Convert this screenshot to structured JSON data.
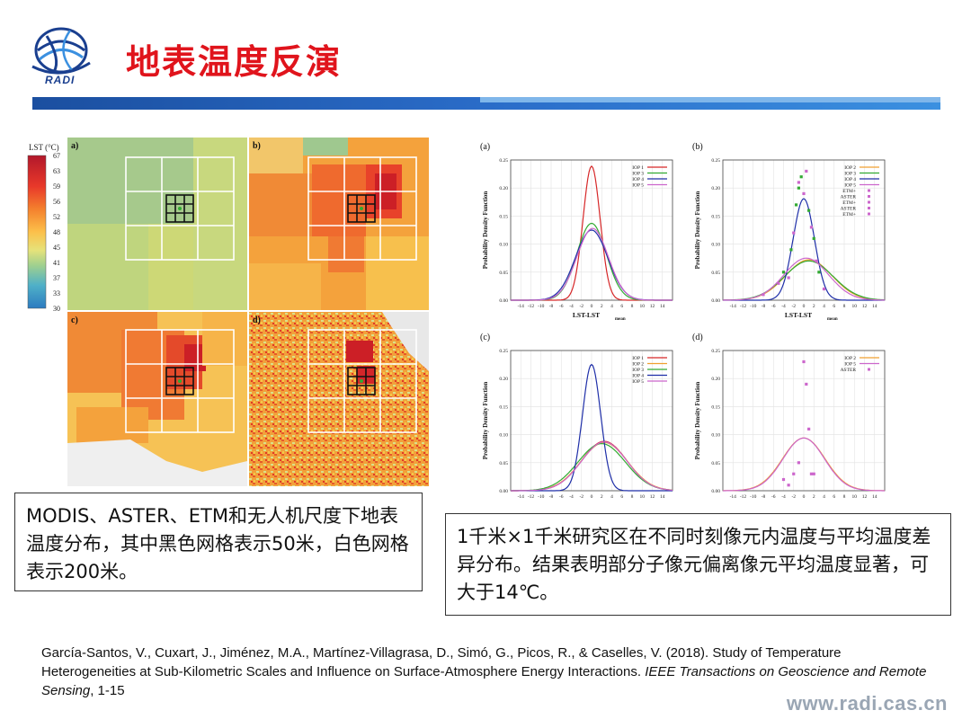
{
  "slide": {
    "logo_text": "RADI",
    "title": "地表温度反演",
    "url": "www.radi.cas.cn"
  },
  "maps": {
    "colorbar_label": "LST (°C)",
    "colorbar_ticks": [
      "67",
      "63",
      "59",
      "56",
      "52",
      "48",
      "45",
      "41",
      "37",
      "33",
      "30"
    ],
    "panels": [
      "a)",
      "b)",
      "c)",
      "d)"
    ]
  },
  "captions": {
    "left": "MODIS、ASTER、ETM和无人机尺度下地表温度分布，其中黑色网格表示50米，白色网格表示200米。",
    "right": "1千米×1千米研究区在不同时刻像元内温度与平均温度差异分布。结果表明部分子像元偏离像元平均温度显著，可大于14℃。"
  },
  "reference": {
    "text_before": "García-Santos, V., Cuxart, J., Jiménez, M.A., Martínez-Villagrasa, D., Simó, G., Picos, R., & Caselles, V. (2018). Study of Temperature Heterogeneities at Sub-Kilometric Scales and Influence on Surface-Atmosphere Energy Interactions. ",
    "journal": "IEEE Transactions on Geoscience and Remote Sensing",
    "text_after": ", 1-15"
  },
  "colors": {
    "title": "#e0141c",
    "bar": "#2a6cc8",
    "iop1": "#d62728",
    "iop2": "#f0a030",
    "iop3": "#33aa33",
    "iop4": "#1f2fa8",
    "iop5": "#cc66cc"
  },
  "chart_data": [
    {
      "type": "line",
      "panel": "(a)",
      "xlabel": "LST-LST",
      "xlabel_sub": "mean",
      "ylabel": "Probability Density Function",
      "xlim": [
        -16,
        16
      ],
      "ylim": [
        0,
        0.25
      ],
      "xticks": [
        -14,
        -12,
        -10,
        -8,
        -6,
        -4,
        -2,
        0,
        2,
        4,
        6,
        8,
        10,
        12,
        14
      ],
      "yticks": [
        0.0,
        0.05,
        0.1,
        0.15,
        0.2,
        0.25
      ],
      "series": [
        {
          "name": "IOP 1",
          "color": "#d62728",
          "mean": 0.0,
          "sd": 1.7,
          "peak": 0.239
        },
        {
          "name": "IOP 3",
          "color": "#33aa33",
          "mean": 0.0,
          "sd": 2.9,
          "peak": 0.137
        },
        {
          "name": "IOP 4",
          "color": "#1f2fa8",
          "mean": 0.0,
          "sd": 3.2,
          "peak": 0.125
        },
        {
          "name": "IOP 5",
          "color": "#cc66cc",
          "mean": 0.2,
          "sd": 3.1,
          "peak": 0.128
        }
      ],
      "points": []
    },
    {
      "type": "line",
      "panel": "(b)",
      "xlabel": "LST-LST",
      "xlabel_sub": "mean",
      "ylabel": "Probability Density Function",
      "xlim": [
        -16,
        16
      ],
      "ylim": [
        0,
        0.25
      ],
      "xticks": [
        -14,
        -12,
        -10,
        -8,
        -6,
        -4,
        -2,
        0,
        2,
        4,
        6,
        8,
        10,
        12,
        14
      ],
      "yticks": [
        0.0,
        0.05,
        0.1,
        0.15,
        0.2,
        0.25
      ],
      "series": [
        {
          "name": "IOP 2",
          "color": "#f0a030",
          "mean": 1.0,
          "sd": 4.6,
          "peak": 0.072
        },
        {
          "name": "IOP 3",
          "color": "#33aa33",
          "mean": 1.0,
          "sd": 4.8,
          "peak": 0.07
        },
        {
          "name": "IOP 4",
          "color": "#1f2fa8",
          "mean": 0.0,
          "sd": 2.1,
          "peak": 0.181
        },
        {
          "name": "IOP 5",
          "color": "#cc66cc",
          "mean": 0.5,
          "sd": 4.4,
          "peak": 0.075
        }
      ],
      "legend_extra": [
        "ETM+",
        "ASTER",
        "ETM+",
        "ASTER",
        "ETM+"
      ],
      "points": [
        {
          "x": -5,
          "y": 0.03,
          "c": "#cc66cc"
        },
        {
          "x": -4,
          "y": 0.05,
          "c": "#33aa33"
        },
        {
          "x": -3,
          "y": 0.04,
          "c": "#cc66cc"
        },
        {
          "x": -2.5,
          "y": 0.09,
          "c": "#33aa33"
        },
        {
          "x": -2,
          "y": 0.12,
          "c": "#cc66cc"
        },
        {
          "x": -1.5,
          "y": 0.17,
          "c": "#33aa33"
        },
        {
          "x": -1,
          "y": 0.2,
          "c": "#33aa33"
        },
        {
          "x": -1,
          "y": 0.21,
          "c": "#cc66cc"
        },
        {
          "x": -0.5,
          "y": 0.22,
          "c": "#33aa33"
        },
        {
          "x": 0,
          "y": 0.19,
          "c": "#cc66cc"
        },
        {
          "x": 0.5,
          "y": 0.23,
          "c": "#cc66cc"
        },
        {
          "x": 1,
          "y": 0.16,
          "c": "#33aa33"
        },
        {
          "x": 1.5,
          "y": 0.13,
          "c": "#cc66cc"
        },
        {
          "x": 2,
          "y": 0.11,
          "c": "#33aa33"
        },
        {
          "x": 2.5,
          "y": 0.07,
          "c": "#cc66cc"
        },
        {
          "x": 3,
          "y": 0.05,
          "c": "#33aa33"
        },
        {
          "x": 4,
          "y": 0.02,
          "c": "#cc66cc"
        },
        {
          "x": -8,
          "y": 0.01,
          "c": "#cc66cc"
        }
      ]
    },
    {
      "type": "line",
      "panel": "(c)",
      "xlabel": "LST-LST",
      "xlabel_sub": "mean",
      "ylabel": "Probability Density Function",
      "xlim": [
        -16,
        16
      ],
      "ylim": [
        0,
        0.25
      ],
      "xticks": [
        -14,
        -12,
        -10,
        -8,
        -6,
        -4,
        -2,
        0,
        2,
        4,
        6,
        8,
        10,
        12,
        14
      ],
      "yticks": [
        0.0,
        0.05,
        0.1,
        0.15,
        0.2,
        0.25
      ],
      "series": [
        {
          "name": "IOP 1",
          "color": "#d62728",
          "mean": 2.5,
          "sd": 4.5,
          "peak": 0.088
        },
        {
          "name": "IOP 2",
          "color": "#f0a030",
          "mean": 2.5,
          "sd": 4.6,
          "peak": 0.086
        },
        {
          "name": "IOP 3",
          "color": "#33aa33",
          "mean": 2.0,
          "sd": 4.7,
          "peak": 0.084
        },
        {
          "name": "IOP 4",
          "color": "#1f2fa8",
          "mean": 0.0,
          "sd": 1.8,
          "peak": 0.225
        },
        {
          "name": "IOP 5",
          "color": "#cc66cc",
          "mean": 2.5,
          "sd": 4.5,
          "peak": 0.087
        }
      ],
      "points": []
    },
    {
      "type": "line",
      "panel": "(d)",
      "xlabel": "LST-LST",
      "xlabel_sub": "mean",
      "ylabel": "Probability Density Function",
      "xlim": [
        -16,
        16
      ],
      "ylim": [
        0,
        0.25
      ],
      "xticks": [
        -14,
        -12,
        -10,
        -8,
        -6,
        -4,
        -2,
        0,
        2,
        4,
        6,
        8,
        10,
        12,
        14
      ],
      "yticks": [
        0.0,
        0.05,
        0.1,
        0.15,
        0.2,
        0.25
      ],
      "series": [
        {
          "name": "IOP 2",
          "color": "#f0a030",
          "mean": 0.0,
          "sd": 4.2,
          "peak": 0.094
        },
        {
          "name": "IOP 5",
          "color": "#cc66cc",
          "mean": 0.0,
          "sd": 4.1,
          "peak": 0.094
        }
      ],
      "legend_extra": [
        "ASTER"
      ],
      "points": [
        {
          "x": -3,
          "y": 0.01,
          "c": "#cc66cc"
        },
        {
          "x": -2,
          "y": 0.03,
          "c": "#cc66cc"
        },
        {
          "x": -1,
          "y": 0.05,
          "c": "#cc66cc"
        },
        {
          "x": 0,
          "y": 0.23,
          "c": "#cc66cc"
        },
        {
          "x": 0.5,
          "y": 0.19,
          "c": "#cc66cc"
        },
        {
          "x": 1,
          "y": 0.11,
          "c": "#cc66cc"
        },
        {
          "x": 1.5,
          "y": 0.03,
          "c": "#cc66cc"
        },
        {
          "x": 2,
          "y": 0.03,
          "c": "#cc66cc"
        },
        {
          "x": -4,
          "y": 0.02,
          "c": "#cc66cc"
        }
      ]
    }
  ]
}
